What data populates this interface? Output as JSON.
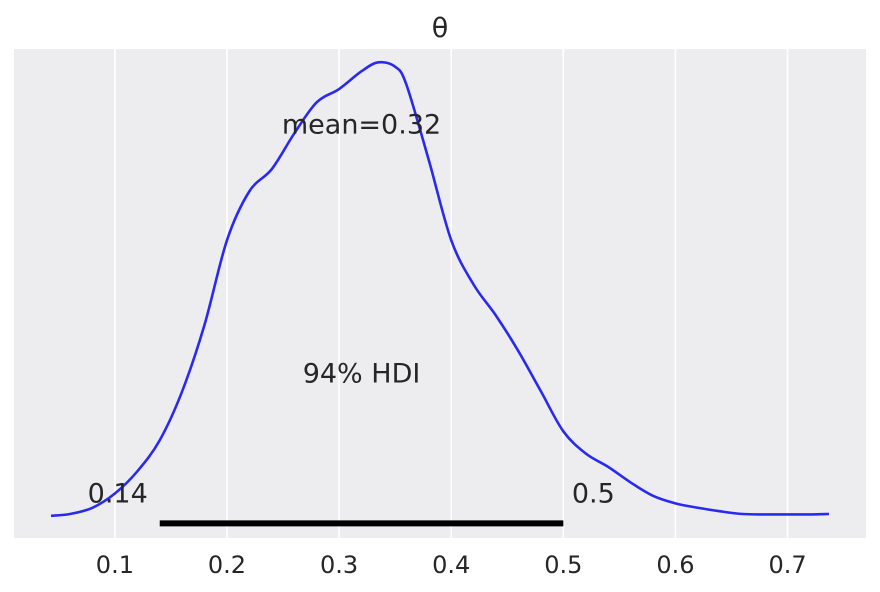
{
  "chart_data": {
    "type": "line",
    "title": "θ",
    "xlabel": "",
    "ylabel": "",
    "xlim": [
      0.01,
      0.77
    ],
    "ylim": [
      -0.05,
      1.05
    ],
    "x_ticks": [
      0.1,
      0.2,
      0.3,
      0.4,
      0.5,
      0.6,
      0.7
    ],
    "x_tick_labels": [
      "0.1",
      "0.2",
      "0.3",
      "0.4",
      "0.5",
      "0.6",
      "0.7"
    ],
    "grid": "vertical",
    "background": "#ededf0",
    "line_color": "#2a2aee",
    "hdi_color": "#000000",
    "series": [
      {
        "x": [
          0.043,
          0.06,
          0.08,
          0.1,
          0.12,
          0.14,
          0.16,
          0.18,
          0.2,
          0.22,
          0.24,
          0.26,
          0.28,
          0.3,
          0.32,
          0.335,
          0.35,
          0.36,
          0.38,
          0.4,
          0.42,
          0.44,
          0.46,
          0.48,
          0.5,
          0.52,
          0.54,
          0.56,
          0.58,
          0.6,
          0.62,
          0.64,
          0.66,
          0.68,
          0.7,
          0.72,
          0.737
        ],
        "y": [
          0.0,
          0.004,
          0.018,
          0.05,
          0.1,
          0.17,
          0.28,
          0.43,
          0.62,
          0.73,
          0.78,
          0.86,
          0.93,
          0.96,
          1.0,
          1.02,
          1.01,
          0.97,
          0.8,
          0.62,
          0.52,
          0.45,
          0.37,
          0.28,
          0.19,
          0.14,
          0.11,
          0.075,
          0.045,
          0.028,
          0.018,
          0.01,
          0.004,
          0.003,
          0.003,
          0.003,
          0.004
        ]
      }
    ],
    "annotations": {
      "mean_label": "mean=0.32",
      "hdi_label": "94% HDI",
      "hdi_low": 0.14,
      "hdi_high": 0.5,
      "hdi_low_label": "0.14",
      "hdi_high_label": "0.5"
    }
  }
}
